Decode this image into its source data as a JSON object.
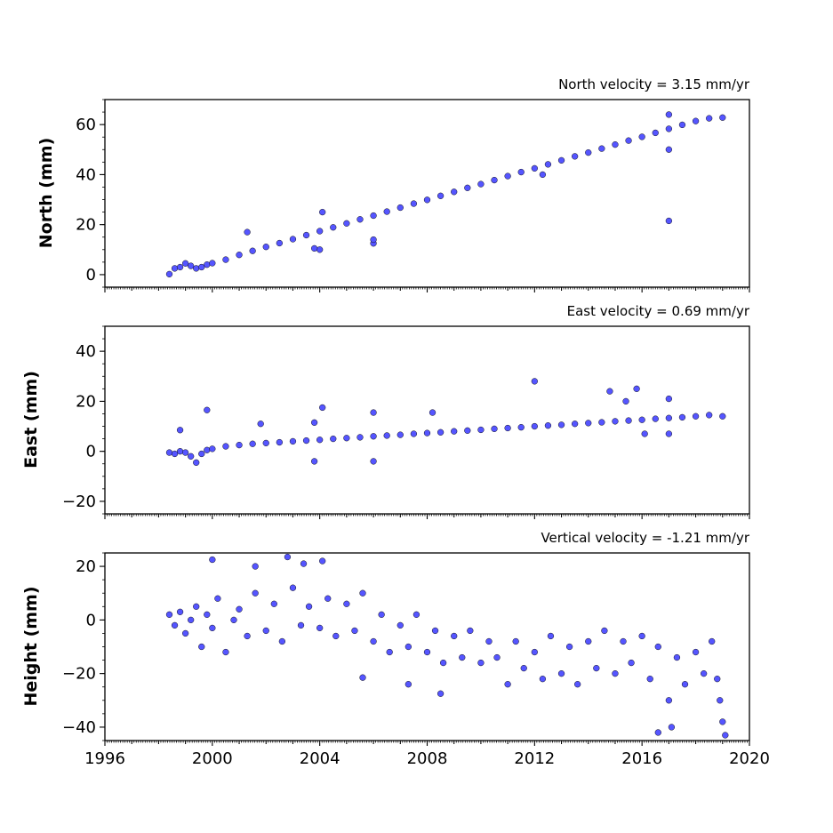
{
  "chart_data": [
    {
      "type": "scatter",
      "title": "North velocity = 3.15 mm/yr",
      "xlabel": "",
      "ylabel": "North (mm)",
      "xlim": [
        1996,
        2020
      ],
      "ylim": [
        -5,
        70
      ],
      "yticks": [
        0,
        20,
        40,
        60
      ],
      "yticklabels": [
        "0",
        "20",
        "40",
        "60"
      ],
      "show_xticklabels": false,
      "color": "#5555ff",
      "points": [
        [
          1998.4,
          0.2
        ],
        [
          1998.6,
          2.5
        ],
        [
          1998.8,
          3.0
        ],
        [
          1999.0,
          4.5
        ],
        [
          1999.2,
          3.5
        ],
        [
          1999.4,
          2.5
        ],
        [
          1999.6,
          3.0
        ],
        [
          1999.8,
          4.0
        ],
        [
          2000.0,
          4.6
        ],
        [
          2000.5,
          6.0
        ],
        [
          2001.0,
          7.9
        ],
        [
          2001.5,
          9.5
        ],
        [
          2002.0,
          11.1
        ],
        [
          2002.5,
          12.6
        ],
        [
          2003.0,
          14.2
        ],
        [
          2003.5,
          15.8
        ],
        [
          2004.0,
          17.4
        ],
        [
          2004.5,
          18.9
        ],
        [
          2005.0,
          20.5
        ],
        [
          2005.5,
          22.1
        ],
        [
          2006.0,
          23.6
        ],
        [
          2006.5,
          25.2
        ],
        [
          2007.0,
          26.8
        ],
        [
          2007.5,
          28.4
        ],
        [
          2008.0,
          29.9
        ],
        [
          2008.5,
          31.5
        ],
        [
          2009.0,
          33.1
        ],
        [
          2009.5,
          34.7
        ],
        [
          2010.0,
          36.2
        ],
        [
          2010.5,
          37.8
        ],
        [
          2011.0,
          39.4
        ],
        [
          2011.5,
          41.0
        ],
        [
          2012.0,
          42.5
        ],
        [
          2012.5,
          44.1
        ],
        [
          2013.0,
          45.7
        ],
        [
          2013.5,
          47.3
        ],
        [
          2014.0,
          48.8
        ],
        [
          2014.5,
          50.4
        ],
        [
          2015.0,
          52.0
        ],
        [
          2015.5,
          53.6
        ],
        [
          2016.0,
          55.1
        ],
        [
          2016.5,
          56.7
        ],
        [
          2017.0,
          58.3
        ],
        [
          2017.5,
          59.9
        ],
        [
          2018.0,
          61.4
        ],
        [
          2018.5,
          62.5
        ],
        [
          2019.0,
          62.8
        ],
        [
          2004.1,
          25.0
        ],
        [
          2004.0,
          10.0
        ],
        [
          2006.0,
          12.5
        ],
        [
          2006.0,
          14.0
        ],
        [
          2001.3,
          17.0
        ],
        [
          2012.3,
          40.0
        ],
        [
          2017.0,
          50.0
        ],
        [
          2017.0,
          21.5
        ],
        [
          2017.0,
          64.0
        ],
        [
          2003.8,
          10.5
        ]
      ]
    },
    {
      "type": "scatter",
      "title": "East velocity = 0.69 mm/yr",
      "xlabel": "",
      "ylabel": "East (mm)",
      "xlim": [
        1996,
        2020
      ],
      "ylim": [
        -25,
        50
      ],
      "yticks": [
        -20,
        0,
        20,
        40
      ],
      "yticklabels": [
        "−20",
        "0",
        "20",
        "40"
      ],
      "show_xticklabels": false,
      "color": "#5555ff",
      "points": [
        [
          1998.4,
          -0.5
        ],
        [
          1998.6,
          -1.0
        ],
        [
          1998.8,
          0.0
        ],
        [
          1999.0,
          -0.5
        ],
        [
          1999.2,
          -2.0
        ],
        [
          1999.4,
          -4.5
        ],
        [
          1999.6,
          -1.0
        ],
        [
          1999.8,
          0.5
        ],
        [
          2000.0,
          1.0
        ],
        [
          2000.5,
          2.0
        ],
        [
          2001.0,
          2.5
        ],
        [
          2001.5,
          3.0
        ],
        [
          2002.0,
          3.3
        ],
        [
          2002.5,
          3.6
        ],
        [
          2003.0,
          4.0
        ],
        [
          2003.5,
          4.3
        ],
        [
          2004.0,
          4.6
        ],
        [
          2004.5,
          5.0
        ],
        [
          2005.0,
          5.3
        ],
        [
          2005.5,
          5.6
        ],
        [
          2006.0,
          6.0
        ],
        [
          2006.5,
          6.3
        ],
        [
          2007.0,
          6.6
        ],
        [
          2007.5,
          7.0
        ],
        [
          2008.0,
          7.3
        ],
        [
          2008.5,
          7.6
        ],
        [
          2009.0,
          8.0
        ],
        [
          2009.5,
          8.3
        ],
        [
          2010.0,
          8.6
        ],
        [
          2010.5,
          9.0
        ],
        [
          2011.0,
          9.3
        ],
        [
          2011.5,
          9.6
        ],
        [
          2012.0,
          10.0
        ],
        [
          2012.5,
          10.3
        ],
        [
          2013.0,
          10.6
        ],
        [
          2013.5,
          11.0
        ],
        [
          2014.0,
          11.3
        ],
        [
          2014.5,
          11.6
        ],
        [
          2015.0,
          12.0
        ],
        [
          2015.5,
          12.3
        ],
        [
          2016.0,
          12.6
        ],
        [
          2016.5,
          13.0
        ],
        [
          2017.0,
          13.3
        ],
        [
          2017.5,
          13.6
        ],
        [
          2018.0,
          14.0
        ],
        [
          2018.5,
          14.5
        ],
        [
          2019.0,
          14.0
        ],
        [
          1999.8,
          16.5
        ],
        [
          1998.8,
          8.5
        ],
        [
          2001.8,
          11.0
        ],
        [
          2003.8,
          11.5
        ],
        [
          2004.1,
          17.5
        ],
        [
          2003.8,
          -4.0
        ],
        [
          2006.0,
          15.5
        ],
        [
          2006.0,
          -4.0
        ],
        [
          2008.2,
          15.5
        ],
        [
          2012.0,
          28.0
        ],
        [
          2014.8,
          24.0
        ],
        [
          2015.4,
          20.0
        ],
        [
          2015.8,
          25.0
        ],
        [
          2016.1,
          7.0
        ],
        [
          2017.0,
          21.0
        ],
        [
          2017.0,
          7.0
        ]
      ]
    },
    {
      "type": "scatter",
      "title": "Vertical velocity = -1.21 mm/yr",
      "xlabel": "",
      "ylabel": "Height (mm)",
      "xlim": [
        1996,
        2020
      ],
      "ylim": [
        -45,
        25
      ],
      "yticks": [
        -40,
        -20,
        0,
        20
      ],
      "yticklabels": [
        "−40",
        "−20",
        "0",
        "20"
      ],
      "xticks": [
        1996,
        2000,
        2004,
        2008,
        2012,
        2016,
        2020
      ],
      "xticklabels": [
        "1996",
        "2000",
        "2004",
        "2008",
        "2012",
        "2016",
        "2020"
      ],
      "show_xticklabels": true,
      "color": "#5555ff",
      "points": [
        [
          1998.4,
          2.0
        ],
        [
          1998.6,
          -2.0
        ],
        [
          1998.8,
          3.0
        ],
        [
          1999.0,
          -5.0
        ],
        [
          1999.2,
          0.0
        ],
        [
          1999.4,
          5.0
        ],
        [
          1999.6,
          -10.0
        ],
        [
          1999.8,
          2.0
        ],
        [
          2000.0,
          -3.0
        ],
        [
          2000.2,
          8.0
        ],
        [
          2000.5,
          -12.0
        ],
        [
          2000.8,
          0.0
        ],
        [
          2001.0,
          4.0
        ],
        [
          2001.3,
          -6.0
        ],
        [
          2001.6,
          10.0
        ],
        [
          2002.0,
          -4.0
        ],
        [
          2002.3,
          6.0
        ],
        [
          2002.6,
          -8.0
        ],
        [
          2003.0,
          12.0
        ],
        [
          2003.3,
          -2.0
        ],
        [
          2003.6,
          5.0
        ],
        [
          2004.0,
          -3.0
        ],
        [
          2004.3,
          8.0
        ],
        [
          2004.6,
          -6.0
        ],
        [
          2005.0,
          6.0
        ],
        [
          2005.3,
          -4.0
        ],
        [
          2005.6,
          10.0
        ],
        [
          2006.0,
          -8.0
        ],
        [
          2006.3,
          2.0
        ],
        [
          2006.6,
          -12.0
        ],
        [
          2007.0,
          -2.0
        ],
        [
          2007.3,
          -10.0
        ],
        [
          2007.6,
          2.0
        ],
        [
          2008.0,
          -12.0
        ],
        [
          2008.3,
          -4.0
        ],
        [
          2008.6,
          -16.0
        ],
        [
          2009.0,
          -6.0
        ],
        [
          2009.3,
          -14.0
        ],
        [
          2009.6,
          -4.0
        ],
        [
          2010.0,
          -16.0
        ],
        [
          2010.3,
          -8.0
        ],
        [
          2010.6,
          -14.0
        ],
        [
          2011.0,
          -24.0
        ],
        [
          2011.3,
          -8.0
        ],
        [
          2011.6,
          -18.0
        ],
        [
          2012.0,
          -12.0
        ],
        [
          2012.3,
          -22.0
        ],
        [
          2012.6,
          -6.0
        ],
        [
          2013.0,
          -20.0
        ],
        [
          2013.3,
          -10.0
        ],
        [
          2013.6,
          -24.0
        ],
        [
          2014.0,
          -8.0
        ],
        [
          2014.3,
          -18.0
        ],
        [
          2014.6,
          -4.0
        ],
        [
          2015.0,
          -20.0
        ],
        [
          2015.3,
          -8.0
        ],
        [
          2015.6,
          -16.0
        ],
        [
          2016.0,
          -6.0
        ],
        [
          2016.3,
          -22.0
        ],
        [
          2016.6,
          -10.0
        ],
        [
          2017.0,
          -30.0
        ],
        [
          2017.3,
          -14.0
        ],
        [
          2017.6,
          -24.0
        ],
        [
          2018.0,
          -12.0
        ],
        [
          2018.3,
          -20.0
        ],
        [
          2018.6,
          -8.0
        ],
        [
          2018.8,
          -22.0
        ],
        [
          2018.9,
          -30.0
        ],
        [
          2019.0,
          -38.0
        ],
        [
          2019.1,
          -43.0
        ],
        [
          2000.0,
          22.5
        ],
        [
          2002.8,
          23.5
        ],
        [
          2003.4,
          21.0
        ],
        [
          2004.1,
          22.0
        ],
        [
          2001.6,
          20.0
        ],
        [
          2005.6,
          -21.5
        ],
        [
          2016.6,
          -42.0
        ],
        [
          2017.1,
          -40.0
        ],
        [
          2007.3,
          -24.0
        ],
        [
          2008.5,
          -27.5
        ]
      ]
    }
  ]
}
